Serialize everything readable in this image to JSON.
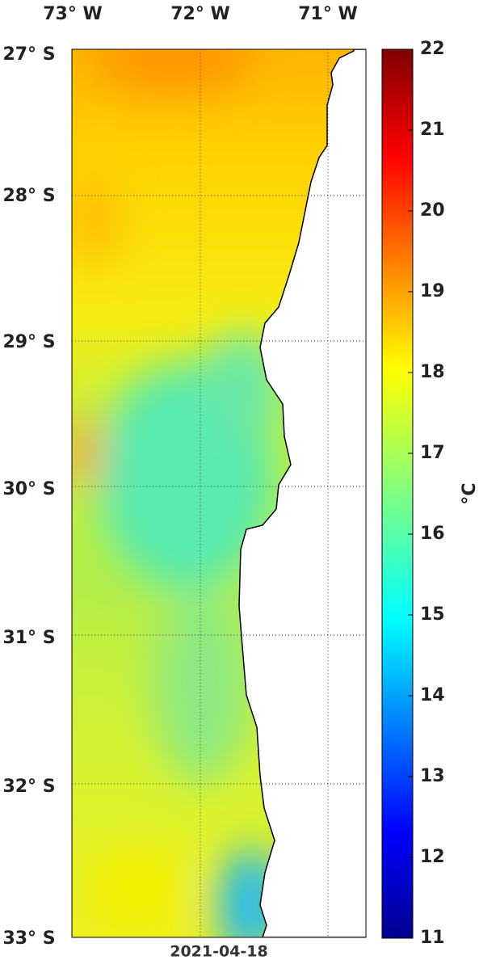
{
  "map": {
    "lon_labels": [
      "73° W",
      "72° W",
      "71° W"
    ],
    "lat_labels": [
      "27° S",
      "28° S",
      "29° S",
      "30° S",
      "31° S",
      "32° S",
      "33° S"
    ],
    "date": "2021-04-18"
  },
  "colorbar": {
    "lim": [
      11,
      22
    ],
    "ticks": [
      11,
      12,
      13,
      14,
      15,
      16,
      17,
      18,
      19,
      20,
      21,
      22
    ],
    "unit": "°C"
  }
}
